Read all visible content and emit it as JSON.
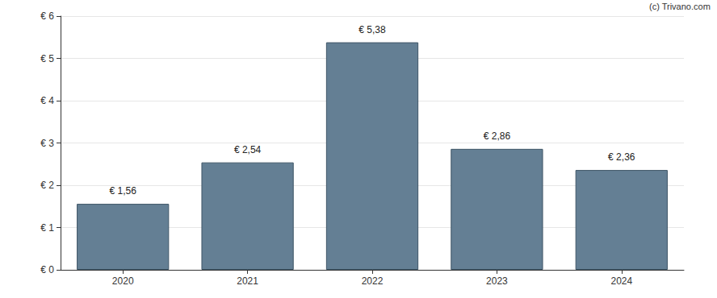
{
  "chart_data": {
    "type": "bar",
    "categories": [
      "2020",
      "2021",
      "2022",
      "2023",
      "2024"
    ],
    "values": [
      1.56,
      2.54,
      5.38,
      2.86,
      2.36
    ],
    "value_labels": [
      "€ 1,56",
      "€ 2,54",
      "€ 5,38",
      "€ 2,86",
      "€ 2,36"
    ],
    "data_labels": true,
    "color": "#647f94",
    "ylim": [
      0,
      6
    ],
    "yticks": [
      {
        "value": 0,
        "label": "€ 0"
      },
      {
        "value": 1,
        "label": "€ 1"
      },
      {
        "value": 2,
        "label": "€ 2"
      },
      {
        "value": 3,
        "label": "€ 3"
      },
      {
        "value": 4,
        "label": "€ 4"
      },
      {
        "value": 5,
        "label": "€ 5"
      },
      {
        "value": 6,
        "label": "€ 6"
      }
    ],
    "grid": true,
    "annotations": [
      "(c) Trivano.com"
    ]
  }
}
